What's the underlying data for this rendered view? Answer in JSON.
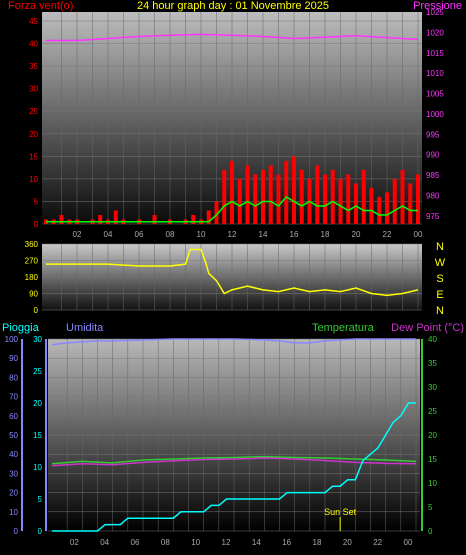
{
  "header": {
    "title": "24 hour graph day : 01 Novembre 2025",
    "left_label": "Forza vent(o)",
    "right_label": "Pressione"
  },
  "colors": {
    "wind": "#ff0000",
    "gust_green": "#00ff00",
    "pressure": "#ff33ff",
    "direction": "#ffff00",
    "rain": "#00ffff",
    "humidity": "#8888ff",
    "temperature": "#33cc33",
    "dewpoint": "#cc33cc",
    "header": "#ffff00"
  },
  "chart_data": [
    {
      "type": "line",
      "name": "wind-pressure",
      "x_ticks": [
        "02",
        "04",
        "06",
        "08",
        "10",
        "12",
        "14",
        "16",
        "18",
        "20",
        "22",
        "00"
      ],
      "y_left_ticks": [
        0,
        5,
        10,
        15,
        20,
        25,
        30,
        35,
        40,
        45
      ],
      "y_right_ticks": [
        975,
        980,
        985,
        990,
        995,
        1000,
        1005,
        1010,
        1015,
        1020,
        1025
      ],
      "ylim_left": [
        0,
        47
      ],
      "ylim_right": [
        973,
        1025
      ],
      "pressure_points": [
        [
          0,
          1018
        ],
        [
          2,
          1018
        ],
        [
          4,
          1018.5
        ],
        [
          6,
          1019
        ],
        [
          8,
          1019.3
        ],
        [
          10,
          1019.5
        ],
        [
          12,
          1019.3
        ],
        [
          14,
          1019
        ],
        [
          16,
          1018.5
        ],
        [
          18,
          1018.8
        ],
        [
          20,
          1019.2
        ],
        [
          22,
          1018.7
        ],
        [
          24,
          1018.3
        ]
      ],
      "wind_points": [
        [
          0,
          1
        ],
        [
          0.5,
          1
        ],
        [
          1,
          2
        ],
        [
          1.5,
          1
        ],
        [
          2,
          1
        ],
        [
          3,
          1
        ],
        [
          3.5,
          2
        ],
        [
          4,
          1
        ],
        [
          4.5,
          3
        ],
        [
          5,
          1
        ],
        [
          6,
          1
        ],
        [
          7,
          2
        ],
        [
          8,
          1
        ],
        [
          9,
          1
        ],
        [
          9.5,
          2
        ],
        [
          10,
          1
        ],
        [
          10.5,
          3
        ],
        [
          11,
          5
        ],
        [
          11.5,
          12
        ],
        [
          12,
          14
        ],
        [
          12.5,
          10
        ],
        [
          13,
          13
        ],
        [
          13.5,
          11
        ],
        [
          14,
          12
        ],
        [
          14.5,
          13
        ],
        [
          15,
          11
        ],
        [
          15.5,
          14
        ],
        [
          16,
          15
        ],
        [
          16.5,
          12
        ],
        [
          17,
          10
        ],
        [
          17.5,
          13
        ],
        [
          18,
          11
        ],
        [
          18.5,
          12
        ],
        [
          19,
          10
        ],
        [
          19.5,
          11
        ],
        [
          20,
          9
        ],
        [
          20.5,
          12
        ],
        [
          21,
          8
        ],
        [
          21.5,
          6
        ],
        [
          22,
          7
        ],
        [
          22.5,
          10
        ],
        [
          23,
          12
        ],
        [
          23.5,
          9
        ],
        [
          24,
          11
        ]
      ],
      "gust_points": [
        [
          0,
          0.5
        ],
        [
          10.5,
          0.5
        ],
        [
          11,
          2
        ],
        [
          11.5,
          4
        ],
        [
          12,
          5
        ],
        [
          12.5,
          4
        ],
        [
          13,
          5
        ],
        [
          13.5,
          4
        ],
        [
          14,
          5
        ],
        [
          14.5,
          5
        ],
        [
          15,
          4
        ],
        [
          15.5,
          6
        ],
        [
          16,
          5
        ],
        [
          16.5,
          4
        ],
        [
          17,
          5
        ],
        [
          17.5,
          4
        ],
        [
          18,
          4
        ],
        [
          18.5,
          5
        ],
        [
          19,
          4
        ],
        [
          19.5,
          3
        ],
        [
          20,
          4
        ],
        [
          20.5,
          3
        ],
        [
          21,
          3
        ],
        [
          21.5,
          2
        ],
        [
          22,
          2
        ],
        [
          22.5,
          3
        ],
        [
          23,
          4
        ],
        [
          23.5,
          3
        ],
        [
          24,
          3
        ]
      ]
    },
    {
      "type": "line",
      "name": "wind-direction",
      "y_ticks": [
        0,
        90,
        180,
        270,
        360
      ],
      "ylim": [
        0,
        360
      ],
      "compass_labels": [
        "N",
        "W",
        "S",
        "E",
        "N"
      ],
      "direction_points": [
        [
          0,
          250
        ],
        [
          2,
          250
        ],
        [
          4,
          250
        ],
        [
          6,
          240
        ],
        [
          7,
          240
        ],
        [
          8,
          240
        ],
        [
          9,
          250
        ],
        [
          9.3,
          330
        ],
        [
          10,
          330
        ],
        [
          10.3,
          260
        ],
        [
          10.5,
          200
        ],
        [
          11,
          160
        ],
        [
          11.5,
          90
        ],
        [
          12,
          110
        ],
        [
          13,
          130
        ],
        [
          14,
          110
        ],
        [
          15,
          100
        ],
        [
          16,
          120
        ],
        [
          17,
          100
        ],
        [
          18,
          110
        ],
        [
          19,
          100
        ],
        [
          20,
          120
        ],
        [
          21,
          90
        ],
        [
          22,
          80
        ],
        [
          23,
          90
        ],
        [
          24,
          110
        ]
      ]
    },
    {
      "type": "line",
      "name": "rain-humidity-temperature",
      "labels": {
        "rain": "Pioggia",
        "humidity": "Umidita",
        "temperature": "Temperatura",
        "dewpoint": "Dew Point (°C)",
        "sunset": "Sun Set"
      },
      "y_left_outer_ticks": [
        0,
        10,
        20,
        30,
        40,
        50,
        60,
        70,
        80,
        90,
        100
      ],
      "y_left_inner_ticks": [
        0,
        5,
        10,
        15,
        20,
        25,
        30
      ],
      "y_right_ticks": [
        0,
        5,
        10,
        15,
        20,
        25,
        30,
        35,
        40
      ],
      "ylim_humidity": [
        0,
        100
      ],
      "ylim_rain": [
        0,
        30
      ],
      "ylim_temp": [
        0,
        40
      ],
      "x_ticks": [
        "02",
        "04",
        "06",
        "08",
        "10",
        "12",
        "14",
        "16",
        "18",
        "20",
        "22",
        "00"
      ],
      "humidity_points": [
        [
          0,
          97
        ],
        [
          1,
          98
        ],
        [
          2,
          98.5
        ],
        [
          3,
          99
        ],
        [
          4,
          99
        ],
        [
          6,
          99.5
        ],
        [
          8,
          100
        ],
        [
          10,
          100
        ],
        [
          12,
          100
        ],
        [
          14,
          99.5
        ],
        [
          15,
          99
        ],
        [
          16,
          98
        ],
        [
          17,
          98
        ],
        [
          18,
          99
        ],
        [
          20,
          100
        ],
        [
          22,
          100
        ],
        [
          24,
          100
        ]
      ],
      "temperature_points": [
        [
          0,
          14
        ],
        [
          2,
          14.5
        ],
        [
          4,
          14.2
        ],
        [
          6,
          14.8
        ],
        [
          8,
          15
        ],
        [
          10,
          15.2
        ],
        [
          12,
          15.3
        ],
        [
          14,
          15.5
        ],
        [
          16,
          15.3
        ],
        [
          18,
          15.2
        ],
        [
          20,
          15
        ],
        [
          22,
          14.8
        ],
        [
          24,
          14.5
        ]
      ],
      "dewpoint_points": [
        [
          0,
          13.6
        ],
        [
          2,
          14
        ],
        [
          4,
          13.8
        ],
        [
          6,
          14.3
        ],
        [
          8,
          14.6
        ],
        [
          10,
          14.9
        ],
        [
          12,
          15
        ],
        [
          14,
          15.2
        ],
        [
          16,
          15
        ],
        [
          18,
          14.7
        ],
        [
          20,
          14.3
        ],
        [
          22,
          14.1
        ],
        [
          24,
          14
        ]
      ],
      "rain_points": [
        [
          0,
          0
        ],
        [
          3,
          0
        ],
        [
          3.5,
          1
        ],
        [
          4.5,
          1
        ],
        [
          5,
          2
        ],
        [
          8,
          2
        ],
        [
          8.5,
          3
        ],
        [
          10,
          3
        ],
        [
          10.5,
          4
        ],
        [
          11,
          4
        ],
        [
          11.5,
          5
        ],
        [
          15,
          5
        ],
        [
          15.5,
          6
        ],
        [
          18,
          6
        ],
        [
          18.5,
          7
        ],
        [
          19,
          7
        ],
        [
          19.5,
          8
        ],
        [
          20,
          8
        ],
        [
          20.5,
          11
        ],
        [
          21,
          12
        ],
        [
          21.5,
          13
        ],
        [
          22,
          15
        ],
        [
          22.5,
          17
        ],
        [
          23,
          18
        ],
        [
          23.5,
          20
        ],
        [
          24,
          20
        ]
      ],
      "sunset_hour": 19.0
    }
  ]
}
